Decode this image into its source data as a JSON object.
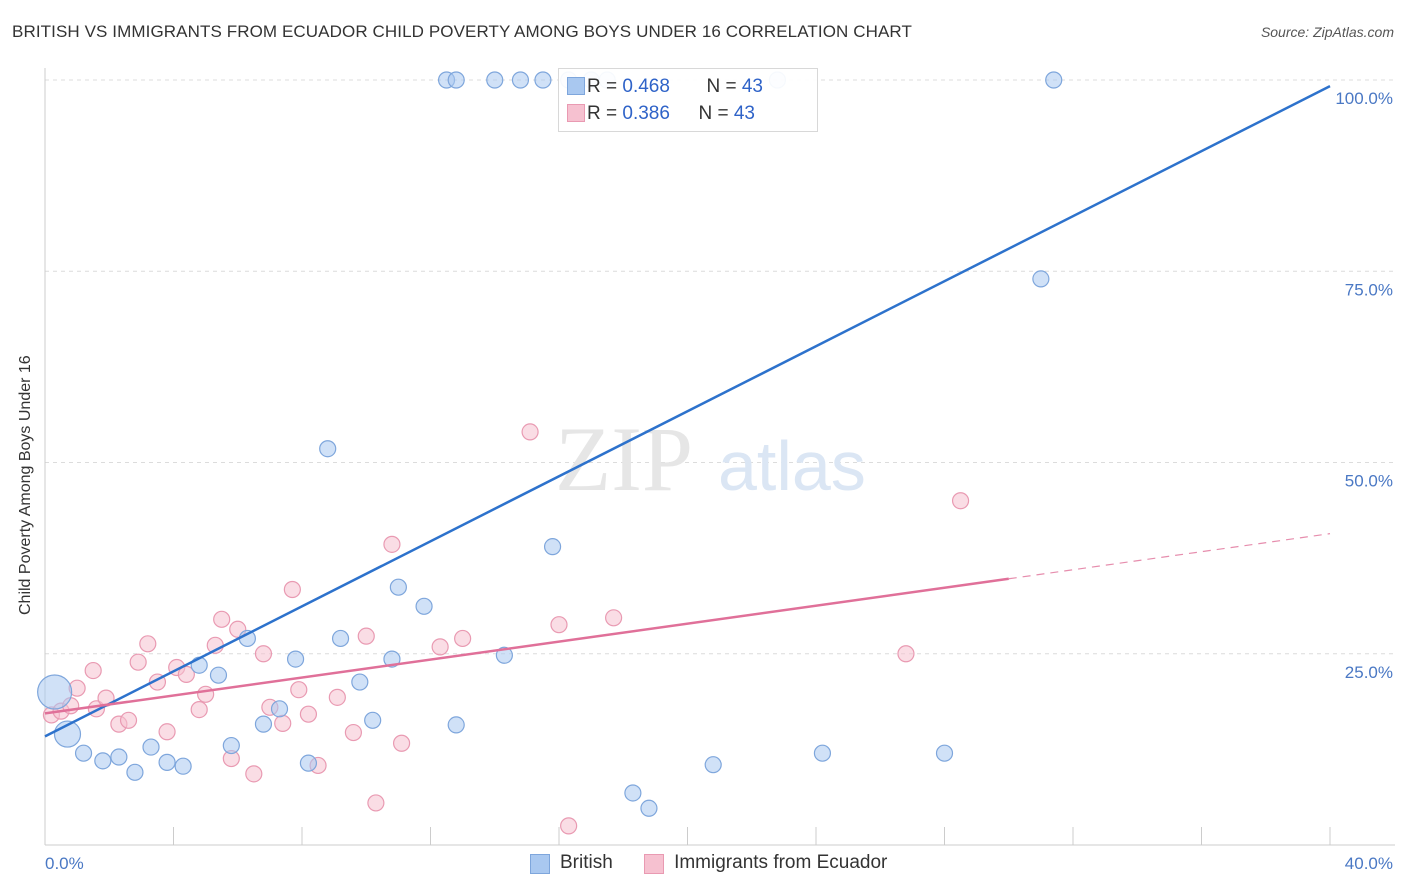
{
  "title": "BRITISH VS IMMIGRANTS FROM ECUADOR CHILD POVERTY AMONG BOYS UNDER 16 CORRELATION CHART",
  "source": "Source: ZipAtlas.com",
  "watermark": {
    "zip": "ZIP",
    "atlas": "atlas"
  },
  "colors": {
    "british_fill": "#a9c8f0",
    "british_stroke": "#7ea6dc",
    "british_line": "#2d72cc",
    "ecuador_fill": "#f6c1d0",
    "ecuador_stroke": "#e99ab2",
    "ecuador_line": "#e07099",
    "axis_text": "#4a78c4",
    "grid": "#dcdcdc"
  },
  "stats": [
    {
      "r_label": "R = ",
      "r_value": "0.468",
      "n_label": "N = ",
      "n_value": "43"
    },
    {
      "r_label": "R = ",
      "r_value": "0.386",
      "n_label": "N = ",
      "n_value": "43"
    }
  ],
  "legend": {
    "british": "British",
    "ecuador": "Immigrants from Ecuador"
  },
  "chart_data": {
    "type": "scatter",
    "title": "BRITISH VS IMMIGRANTS FROM ECUADOR CHILD POVERTY AMONG BOYS UNDER 16 CORRELATION CHART",
    "xlabel": "",
    "ylabel": "Child Poverty Among Boys Under 16",
    "xlim": [
      0,
      40
    ],
    "ylim": [
      0,
      100
    ],
    "x_tick_labels": [
      "0.0%",
      "40.0%"
    ],
    "y_tick_values": [
      25,
      50,
      75,
      100
    ],
    "y_tick_labels": [
      "25.0%",
      "50.0%",
      "75.0%",
      "100.0%"
    ],
    "grid": true,
    "legend_position": "bottom-center",
    "series": [
      {
        "name": "British",
        "regression": {
          "x": [
            0,
            40
          ],
          "y": [
            14.2,
            99.2
          ]
        },
        "points": [
          {
            "x": 0.3,
            "y": 20,
            "s": 34
          },
          {
            "x": 0.7,
            "y": 14.5,
            "s": 26
          },
          {
            "x": 1.2,
            "y": 12
          },
          {
            "x": 1.8,
            "y": 11
          },
          {
            "x": 2.3,
            "y": 11.5
          },
          {
            "x": 2.8,
            "y": 9.5
          },
          {
            "x": 3.3,
            "y": 12.8
          },
          {
            "x": 3.8,
            "y": 10.8
          },
          {
            "x": 4.3,
            "y": 10.3
          },
          {
            "x": 4.8,
            "y": 23.5
          },
          {
            "x": 5.4,
            "y": 22.2
          },
          {
            "x": 5.8,
            "y": 13
          },
          {
            "x": 6.3,
            "y": 27
          },
          {
            "x": 6.8,
            "y": 15.8
          },
          {
            "x": 7.3,
            "y": 17.8
          },
          {
            "x": 7.8,
            "y": 24.3
          },
          {
            "x": 8.2,
            "y": 10.7
          },
          {
            "x": 8.8,
            "y": 51.8
          },
          {
            "x": 9.2,
            "y": 27
          },
          {
            "x": 9.8,
            "y": 21.3
          },
          {
            "x": 10.2,
            "y": 16.3
          },
          {
            "x": 10.8,
            "y": 24.3
          },
          {
            "x": 11.0,
            "y": 33.7
          },
          {
            "x": 11.8,
            "y": 31.2
          },
          {
            "x": 12.8,
            "y": 15.7
          },
          {
            "x": 14.3,
            "y": 24.8
          },
          {
            "x": 15.8,
            "y": 39
          },
          {
            "x": 18.3,
            "y": 6.8
          },
          {
            "x": 18.8,
            "y": 4.8
          },
          {
            "x": 20.8,
            "y": 10.5
          },
          {
            "x": 24.2,
            "y": 12
          },
          {
            "x": 28.0,
            "y": 12
          },
          {
            "x": 31.0,
            "y": 74
          },
          {
            "x": 12.5,
            "y": 100
          },
          {
            "x": 12.8,
            "y": 100
          },
          {
            "x": 14.0,
            "y": 100
          },
          {
            "x": 14.8,
            "y": 100
          },
          {
            "x": 15.5,
            "y": 100
          },
          {
            "x": 16.3,
            "y": 100
          },
          {
            "x": 17.0,
            "y": 100
          },
          {
            "x": 17.5,
            "y": 100
          },
          {
            "x": 22.8,
            "y": 100
          },
          {
            "x": 31.4,
            "y": 100
          }
        ]
      },
      {
        "name": "Immigrants from Ecuador",
        "regression": {
          "x": [
            0,
            30
          ],
          "y": [
            17.2,
            34.8
          ],
          "dashed_to": {
            "x": 40,
            "y": 40.7
          }
        },
        "points": [
          {
            "x": 0.2,
            "y": 17
          },
          {
            "x": 0.5,
            "y": 17.5
          },
          {
            "x": 0.8,
            "y": 18.2
          },
          {
            "x": 1.0,
            "y": 20.5
          },
          {
            "x": 1.5,
            "y": 22.8
          },
          {
            "x": 1.6,
            "y": 17.8
          },
          {
            "x": 1.9,
            "y": 19.2
          },
          {
            "x": 2.3,
            "y": 15.8
          },
          {
            "x": 2.6,
            "y": 16.3
          },
          {
            "x": 2.9,
            "y": 23.9
          },
          {
            "x": 3.2,
            "y": 26.3
          },
          {
            "x": 3.5,
            "y": 21.3
          },
          {
            "x": 3.8,
            "y": 14.8
          },
          {
            "x": 4.1,
            "y": 23.2
          },
          {
            "x": 4.4,
            "y": 22.3
          },
          {
            "x": 4.8,
            "y": 17.7
          },
          {
            "x": 5.0,
            "y": 19.7
          },
          {
            "x": 5.3,
            "y": 26.1
          },
          {
            "x": 5.5,
            "y": 29.5
          },
          {
            "x": 5.8,
            "y": 11.3
          },
          {
            "x": 6.0,
            "y": 28.2
          },
          {
            "x": 6.5,
            "y": 9.3
          },
          {
            "x": 6.8,
            "y": 25
          },
          {
            "x": 7.0,
            "y": 18
          },
          {
            "x": 7.4,
            "y": 15.9
          },
          {
            "x": 7.7,
            "y": 33.4
          },
          {
            "x": 7.9,
            "y": 20.3
          },
          {
            "x": 8.2,
            "y": 17.1
          },
          {
            "x": 8.5,
            "y": 10.4
          },
          {
            "x": 9.1,
            "y": 19.3
          },
          {
            "x": 9.6,
            "y": 14.7
          },
          {
            "x": 10.0,
            "y": 27.3
          },
          {
            "x": 10.3,
            "y": 5.5
          },
          {
            "x": 10.8,
            "y": 39.3
          },
          {
            "x": 11.1,
            "y": 13.3
          },
          {
            "x": 12.3,
            "y": 25.9
          },
          {
            "x": 13.0,
            "y": 27
          },
          {
            "x": 15.1,
            "y": 54
          },
          {
            "x": 16.0,
            "y": 28.8
          },
          {
            "x": 16.3,
            "y": 2.5
          },
          {
            "x": 17.7,
            "y": 29.7
          },
          {
            "x": 26.8,
            "y": 25
          },
          {
            "x": 28.5,
            "y": 45
          }
        ]
      }
    ]
  }
}
